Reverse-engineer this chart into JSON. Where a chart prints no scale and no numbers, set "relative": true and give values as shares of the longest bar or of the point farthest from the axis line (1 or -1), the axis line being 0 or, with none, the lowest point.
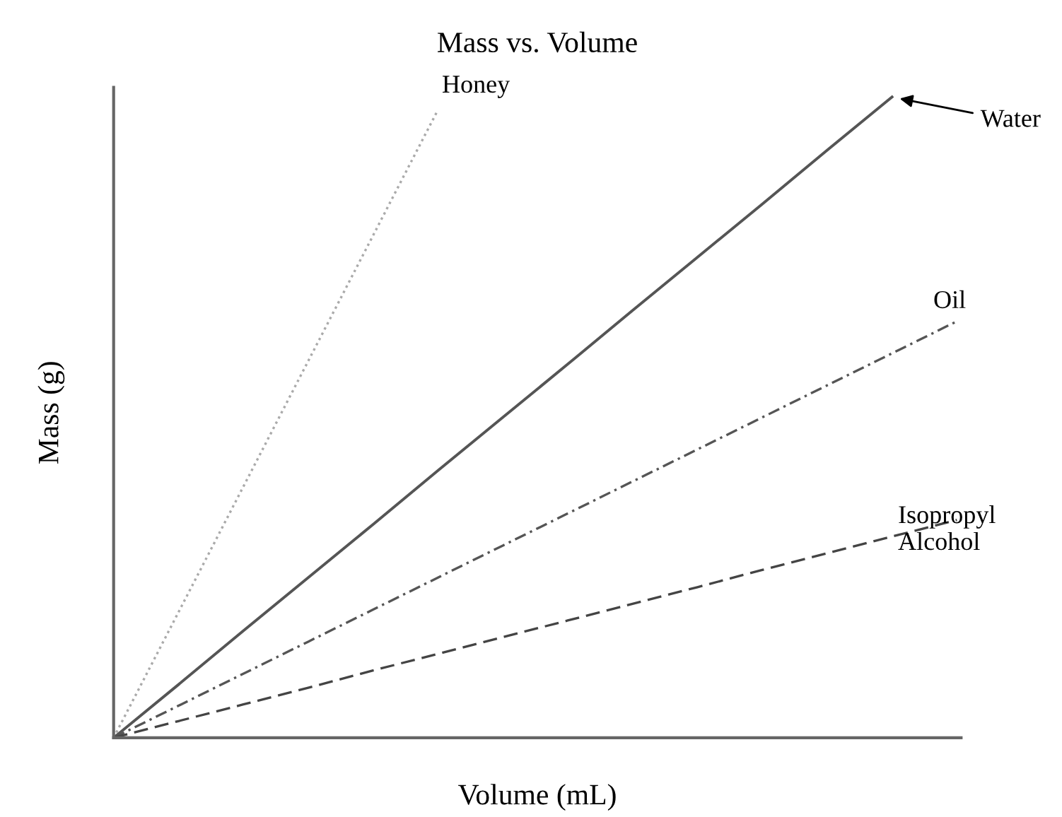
{
  "chart_data": {
    "type": "line",
    "title": "Mass vs. Volume",
    "xlabel": "Volume (mL)",
    "ylabel": "Mass (g)",
    "relative": true,
    "legend": false,
    "marker": "none",
    "categories": [
      null,
      null,
      null,
      null,
      null,
      null,
      null,
      null,
      null,
      null,
      null,
      null,
      null,
      null
    ],
    "series": [
      {
        "name": "Honey",
        "color": "#aaaaaa",
        "line_style": "dotted",
        "values": [
          0,
          0.196,
          0.392,
          0.588,
          0.784,
          0.98,
          null,
          null,
          null,
          null,
          null,
          null,
          null,
          null
        ]
      },
      {
        "name": "Water",
        "color": "#555555",
        "line_style": "solid",
        "values": [
          0,
          0.083,
          0.167,
          0.25,
          0.333,
          0.417,
          0.5,
          0.583,
          0.667,
          0.75,
          0.833,
          0.917,
          1,
          null
        ]
      },
      {
        "name": "Oil",
        "color": "#555555",
        "line_style": "dashdot",
        "values": [
          0,
          0.05,
          0.1,
          0.15,
          0.2,
          0.25,
          0.3,
          0.35,
          0.4,
          0.45,
          0.5,
          0.55,
          0.6,
          0.65
        ]
      },
      {
        "name": "Isopropyl\nAlcohol",
        "color": "#444444",
        "line_style": "dashed",
        "values": [
          0,
          0.026,
          0.052,
          0.078,
          0.105,
          0.131,
          0.157,
          0.183,
          0.209,
          0.235,
          0.262,
          0.288,
          0.314,
          0.34
        ]
      }
    ]
  }
}
